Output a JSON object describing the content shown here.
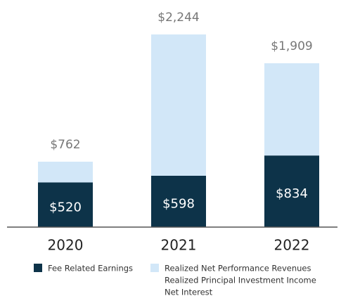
{
  "chart_data": {
    "type": "stacked_bar",
    "categories": [
      "2020",
      "2021",
      "2022"
    ],
    "series": [
      {
        "name": "Fee Related Earnings",
        "color": "#0d3349",
        "values": [
          520,
          598,
          834
        ],
        "value_labels": [
          "$520",
          "$598",
          "$834"
        ]
      },
      {
        "name": [
          "Realized Net Performance Revenues",
          "Realized Principal Investment Income",
          "Net Interest"
        ],
        "color": "#d2e7f8",
        "values": [
          242,
          1646,
          1075
        ]
      }
    ],
    "total_labels": [
      "$762",
      "$2,244",
      "$1,909"
    ]
  }
}
